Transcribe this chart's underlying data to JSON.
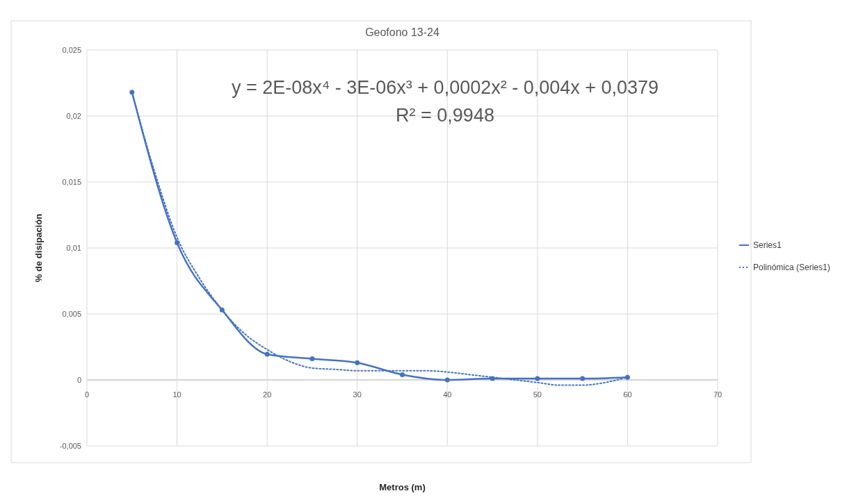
{
  "chart_data": {
    "type": "line",
    "title": "Geofono 13-24",
    "xlabel": "Metros  (m)",
    "ylabel": "% de disipación",
    "annotations": [
      "y = 2E-08x⁴ - 3E-06x³ + 0,0002x² - 0,004x + 0,0379",
      "R² = 0,9948"
    ],
    "x": [
      5,
      10,
      15,
      20,
      25,
      30,
      35,
      40,
      45,
      50,
      55,
      60
    ],
    "series": [
      {
        "name": "Series1",
        "color": "#4472c4",
        "marker": "circle",
        "line_style": "solid",
        "values": [
          0.0218,
          0.0104,
          0.0053,
          0.00195,
          0.0016,
          0.0013,
          0.0004,
          0,
          0.0001,
          0.0001,
          0.0001,
          0.0002
        ]
      },
      {
        "name": "Polinómica (Series1)",
        "color": "#4472c4",
        "marker": "none",
        "line_style": "dotted",
        "x": [
          5,
          7.5,
          10,
          12.5,
          15,
          17.5,
          20,
          22.5,
          25,
          27.5,
          30,
          32.5,
          35,
          37.5,
          40,
          42.5,
          45,
          47.5,
          50,
          52.5,
          55,
          57.5,
          60
        ],
        "values": [
          0.0218,
          0.0158,
          0.0108,
          0.0077,
          0.0053,
          0.0035,
          0.0023,
          0.0014,
          0.0009,
          0.0008,
          0.0007,
          0.0007,
          0.0007,
          0.0007,
          0.0006,
          0.0004,
          0.0002,
          0,
          -0.0002,
          -0.0004,
          -0.0004,
          -0.0002,
          0.0002
        ]
      }
    ],
    "xlim": [
      0,
      70
    ],
    "xticks": [
      0,
      10,
      20,
      30,
      40,
      50,
      60,
      70
    ],
    "ylim": [
      -0.005,
      0.025
    ],
    "yticks": [
      {
        "value": -0.005,
        "label": "-0,005"
      },
      {
        "value": 0,
        "label": "0"
      },
      {
        "value": 0.005,
        "label": "0,005"
      },
      {
        "value": 0.01,
        "label": "0,01"
      },
      {
        "value": 0.015,
        "label": "0,015"
      },
      {
        "value": 0.02,
        "label": "0,02"
      },
      {
        "value": 0.025,
        "label": "0,025"
      }
    ],
    "grid": true,
    "legend": "right"
  }
}
